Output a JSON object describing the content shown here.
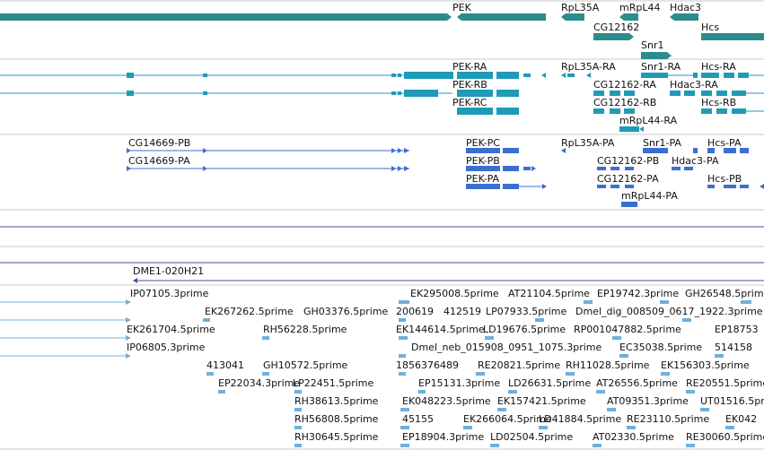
{
  "colors": {
    "gene": "#2b8c8c",
    "transcript": "#1f9bb8",
    "protein": "#3a6fd1",
    "purple": "#6a3fa0",
    "est": "#6fb0dc",
    "divider": "#c8c8c8"
  },
  "gene_labels": [
    {
      "text": "PEK"
    },
    {
      "text": "RpL35A"
    },
    {
      "text": "mRpL44"
    },
    {
      "text": "Hdac3"
    },
    {
      "text": "CG12162"
    },
    {
      "text": "Hcs"
    },
    {
      "text": "Snr1"
    }
  ],
  "transcript_labels": [
    {
      "text": "PEK-RA"
    },
    {
      "text": "RpL35A-RA"
    },
    {
      "text": "Snr1-RA"
    },
    {
      "text": "Hcs-RA"
    },
    {
      "text": "PEK-RB"
    },
    {
      "text": "CG12162-RA"
    },
    {
      "text": "Hdac3-RA"
    },
    {
      "text": "PEK-RC"
    },
    {
      "text": "CG12162-RB"
    },
    {
      "text": "Hcs-RB"
    },
    {
      "text": "mRpL44-RA"
    }
  ],
  "protein_labels": [
    {
      "text": "CG14669-PB"
    },
    {
      "text": "PEK-PC"
    },
    {
      "text": "RpL35A-PA"
    },
    {
      "text": "Snr1-PA"
    },
    {
      "text": "Hcs-PA"
    },
    {
      "text": "CG14669-PA"
    },
    {
      "text": "PEK-PB"
    },
    {
      "text": "CG12162-PB"
    },
    {
      "text": "Hdac3-PA"
    },
    {
      "text": "PEK-PA"
    },
    {
      "text": "CG12162-PA"
    },
    {
      "text": "Hcs-PB"
    },
    {
      "text": "mRpL44-PA"
    }
  ],
  "clone_label": "DME1-020H21",
  "est_labels": [
    {
      "text": "IP07105.3prime"
    },
    {
      "text": "EK295008.5prime"
    },
    {
      "text": "AT21104.5prime"
    },
    {
      "text": "EP19742.3prime"
    },
    {
      "text": "GH26548.5prime"
    },
    {
      "text": "EK267262.5prime"
    },
    {
      "text": "GH03376.5prime"
    },
    {
      "text": "200619"
    },
    {
      "text": "412519"
    },
    {
      "text": "LP07933.5prime"
    },
    {
      "text": "Dmel_dig_008509_0617_1922.3prime"
    },
    {
      "text": "EK261704.5prime"
    },
    {
      "text": "RH56228.5prime"
    },
    {
      "text": "EK144614.5prime"
    },
    {
      "text": "LD19676.5prime"
    },
    {
      "text": "RP001047882.5prime"
    },
    {
      "text": "EP18753"
    },
    {
      "text": "IP06805.3prime"
    },
    {
      "text": "Dmel_neb_015908_0951_1075.3prime"
    },
    {
      "text": "EC35038.5prime"
    },
    {
      "text": "514158"
    },
    {
      "text": "413041"
    },
    {
      "text": "GH10572.5prime"
    },
    {
      "text": "1856376489"
    },
    {
      "text": "RE20821.5prime"
    },
    {
      "text": "RH11028.5prime"
    },
    {
      "text": "EK156303.5prime"
    },
    {
      "text": "EP22034.3prime"
    },
    {
      "text": "LP22451.5prime"
    },
    {
      "text": "EP15131.3prime"
    },
    {
      "text": "LD26631.5prime"
    },
    {
      "text": "AT26556.5prime"
    },
    {
      "text": "RE20551.5prime"
    },
    {
      "text": "RH38613.5prime"
    },
    {
      "text": "EK048223.5prime"
    },
    {
      "text": "EK157421.5prime"
    },
    {
      "text": "AT09351.3prime"
    },
    {
      "text": "UT01516.5prime"
    },
    {
      "text": "RH56808.5prime"
    },
    {
      "text": "45155"
    },
    {
      "text": "EK266064.5prime"
    },
    {
      "text": "LD41884.5prime"
    },
    {
      "text": "RE23110.5prime"
    },
    {
      "text": "EK042"
    },
    {
      "text": "RH30645.5prime"
    },
    {
      "text": "EP18904.3prime"
    },
    {
      "text": "LD02504.5prime"
    },
    {
      "text": "AT02330.5prime"
    },
    {
      "text": "RE30060.5prime"
    }
  ]
}
